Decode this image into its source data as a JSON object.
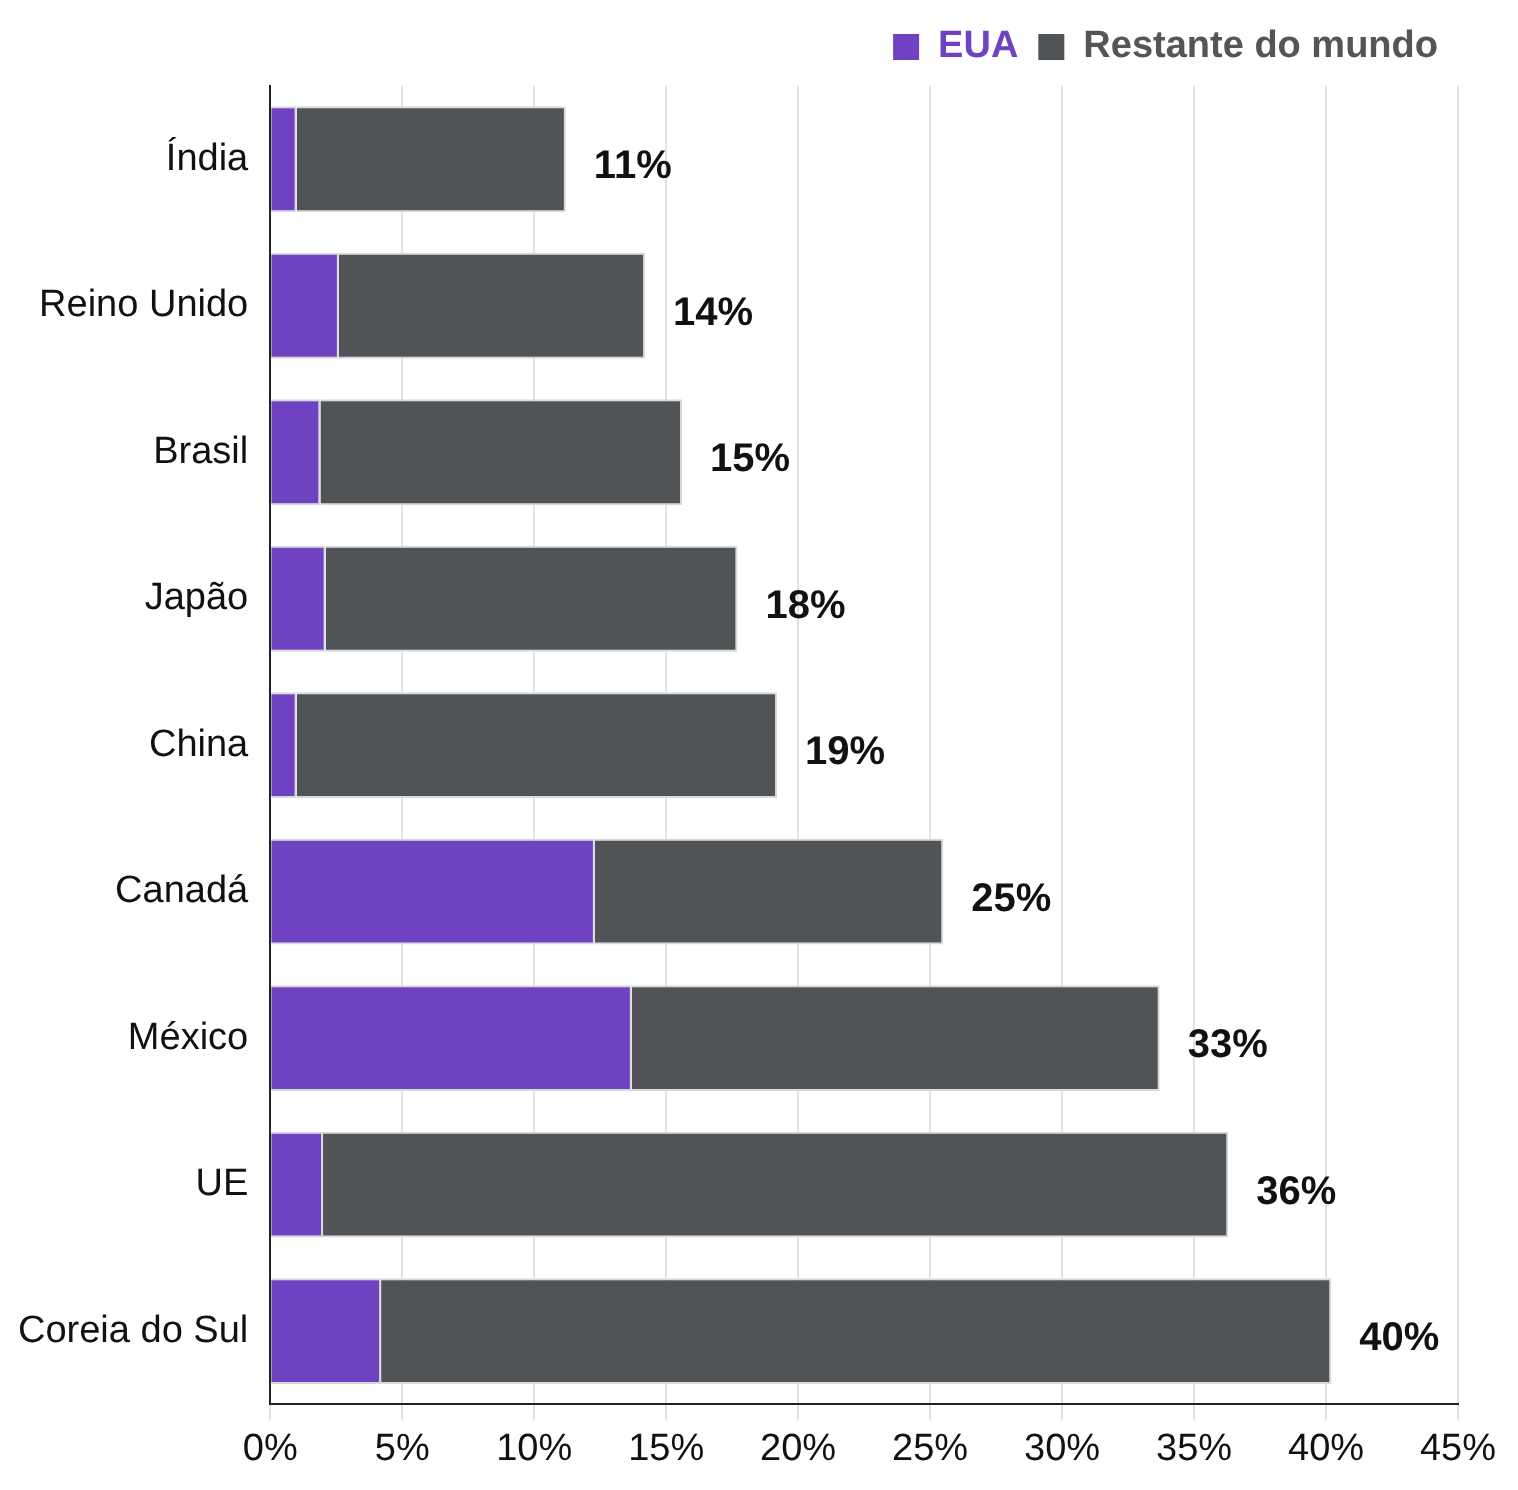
{
  "chart_data": {
    "type": "bar",
    "orientation": "horizontal",
    "stacked": true,
    "categories": [
      "Índia",
      "Reino Unido",
      "Brasil",
      "Japão",
      "China",
      "Canadá",
      "México",
      "UE",
      "Coreia do Sul"
    ],
    "series": [
      {
        "name": "EUA",
        "color": "#6f42c1",
        "values": [
          1.0,
          2.6,
          1.9,
          2.1,
          1.0,
          12.3,
          13.7,
          2.0,
          4.2
        ]
      },
      {
        "name": "Restante do mundo",
        "color": "#505456",
        "values": [
          10.2,
          11.6,
          13.7,
          15.6,
          18.2,
          13.2,
          20.0,
          34.3,
          36.0
        ]
      }
    ],
    "totals": [
      "11%",
      "14%",
      "15%",
      "18%",
      "19%",
      "25%",
      "33%",
      "36%",
      "40%"
    ],
    "xlim": [
      0,
      45
    ],
    "xticks": [
      {
        "value": 0,
        "label": "0%"
      },
      {
        "value": 5,
        "label": "5%"
      },
      {
        "value": 10,
        "label": "10%"
      },
      {
        "value": 15,
        "label": "15%"
      },
      {
        "value": 20,
        "label": "20%"
      },
      {
        "value": 25,
        "label": "25%"
      },
      {
        "value": 30,
        "label": "30%"
      },
      {
        "value": 35,
        "label": "35%"
      },
      {
        "value": 40,
        "label": "40%"
      },
      {
        "value": 45,
        "label": "45%"
      }
    ],
    "grid": "x",
    "legend": "top right"
  }
}
